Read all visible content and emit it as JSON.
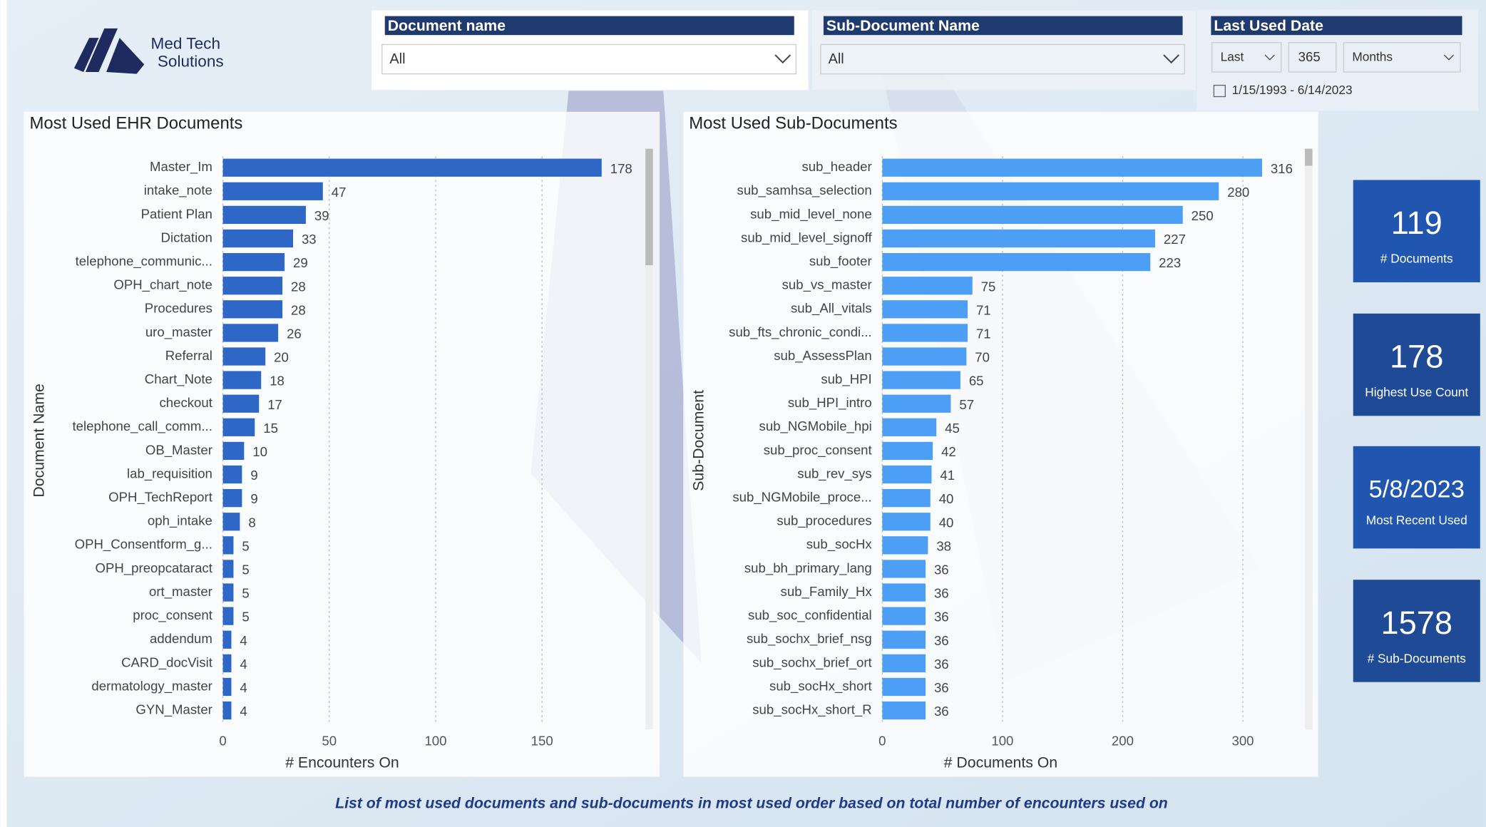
{
  "header": {
    "logo_line1": "Med Tech",
    "logo_line2": "Solutions"
  },
  "filters": [
    {
      "label": "Document name",
      "value": "All"
    },
    {
      "label": "Sub-Document Name",
      "value": "All"
    },
    {
      "label": "Last Used Date",
      "mode": "Last",
      "amount": "365",
      "unit": "Months",
      "range": "1/15/1993 - 6/14/2023"
    }
  ],
  "cards": [
    {
      "value": "119",
      "label": "# Documents"
    },
    {
      "value": "178",
      "label": "Highest Use Count"
    },
    {
      "value": "5/8/2023",
      "label": "Most Recent Used"
    },
    {
      "value": "1578",
      "label": "# Sub-Documents"
    }
  ],
  "chart_data": [
    {
      "type": "bar",
      "orientation": "horizontal",
      "title": "Most Used EHR Documents",
      "y_label": "Document Name",
      "x_label": "# Encounters On",
      "color": "#2f67c6",
      "grid": true,
      "xlim": [
        0,
        195
      ],
      "xticks": [
        0,
        50,
        100,
        150
      ],
      "categories": [
        "Master_Im",
        "intake_note",
        "Patient Plan",
        "Dictation",
        "telephone_communic...",
        "OPH_chart_note",
        "Procedures",
        "uro_master",
        "Referral",
        "Chart_Note",
        "checkout",
        "telephone_call_comm...",
        "OB_Master",
        "lab_requisition",
        "OPH_TechReport",
        "oph_intake",
        "OPH_Consentform_g...",
        "OPH_preopcataract",
        "ort_master",
        "proc_consent",
        "addendum",
        "CARD_docVisit",
        "dermatology_master",
        "GYN_Master"
      ],
      "values": [
        178,
        47,
        39,
        33,
        29,
        28,
        28,
        26,
        20,
        18,
        17,
        15,
        10,
        9,
        9,
        8,
        5,
        5,
        5,
        5,
        4,
        4,
        4,
        4
      ]
    },
    {
      "type": "bar",
      "orientation": "horizontal",
      "title": "Most Used Sub-Documents",
      "y_label": "Sub-Document",
      "x_label": "# Documents On",
      "color": "#4d9ef5",
      "grid": true,
      "xlim": [
        0,
        350
      ],
      "xticks": [
        0,
        100,
        200,
        300
      ],
      "categories": [
        "sub_header",
        "sub_samhsa_selection",
        "sub_mid_level_none",
        "sub_mid_level_signoff",
        "sub_footer",
        "sub_vs_master",
        "sub_All_vitals",
        "sub_fts_chronic_condi...",
        "sub_AssessPlan",
        "sub_HPI",
        "sub_HPI_intro",
        "sub_NGMobile_hpi",
        "sub_proc_consent",
        "sub_rev_sys",
        "sub_NGMobile_proce...",
        "sub_procedures",
        "sub_socHx",
        "sub_bh_primary_lang",
        "sub_Family_Hx",
        "sub_soc_confidential",
        "sub_sochx_brief_nsg",
        "sub_sochx_brief_ort",
        "sub_socHx_short",
        "sub_socHx_short_R"
      ],
      "values": [
        316,
        280,
        250,
        227,
        223,
        75,
        71,
        71,
        70,
        65,
        57,
        45,
        42,
        41,
        40,
        40,
        38,
        36,
        36,
        36,
        36,
        36,
        36,
        36
      ]
    }
  ],
  "footer": "List of most used documents and sub-documents in most used order based on total number of encounters used on"
}
